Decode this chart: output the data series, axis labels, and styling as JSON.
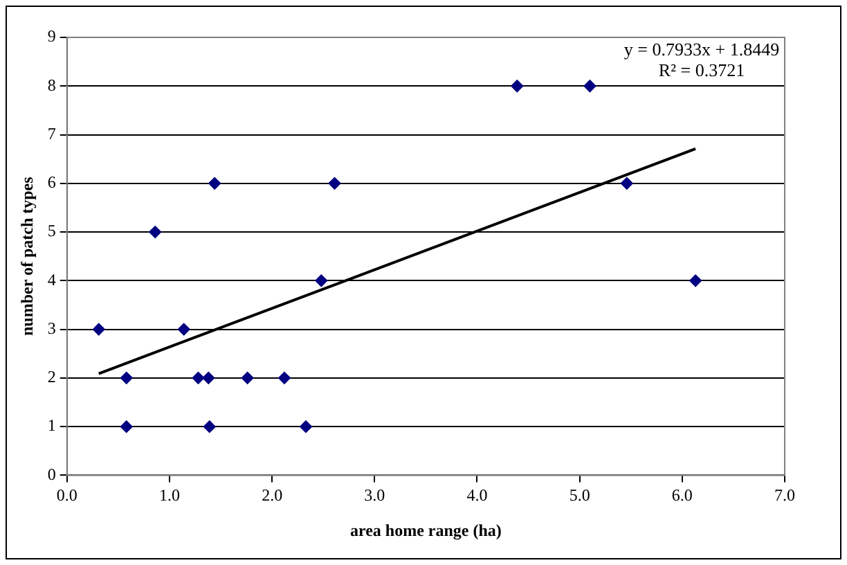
{
  "chart_data": {
    "type": "scatter",
    "xlabel": "area home range (ha)",
    "ylabel": "number of patch types",
    "xlim": [
      0,
      7
    ],
    "xticks": [
      {
        "value": 0,
        "label": "0.0"
      },
      {
        "value": 1,
        "label": "1.0"
      },
      {
        "value": 2,
        "label": "2.0"
      },
      {
        "value": 3,
        "label": "3.0"
      },
      {
        "value": 4,
        "label": "4.0"
      },
      {
        "value": 5,
        "label": "5.0"
      },
      {
        "value": 6,
        "label": "6.0"
      },
      {
        "value": 7,
        "label": "7.0"
      }
    ],
    "ylim": [
      0,
      9
    ],
    "yticks": [
      0,
      1,
      2,
      3,
      4,
      5,
      6,
      7,
      8,
      9
    ],
    "grid": "y",
    "legend": false,
    "annotations": [
      "y = 0.7933x + 1.8449",
      "R² = 0.3721"
    ],
    "series": [
      {
        "type": "scatter",
        "color": "#000080",
        "marker": "diamond",
        "x": [
          0.31,
          0.58,
          0.58,
          0.86,
          1.14,
          1.28,
          1.38,
          1.39,
          1.44,
          1.76,
          2.12,
          2.33,
          2.48,
          2.61,
          4.39,
          5.1,
          5.46,
          6.13
        ],
        "values": [
          3,
          2,
          1,
          5,
          3,
          2,
          2,
          1,
          6,
          2,
          2,
          1,
          4,
          6,
          8,
          8,
          6,
          4
        ]
      },
      {
        "type": "line",
        "color": "#000000",
        "marker": "none",
        "x": [
          0.31,
          6.13
        ],
        "values": [
          2.09,
          6.71
        ]
      }
    ]
  }
}
